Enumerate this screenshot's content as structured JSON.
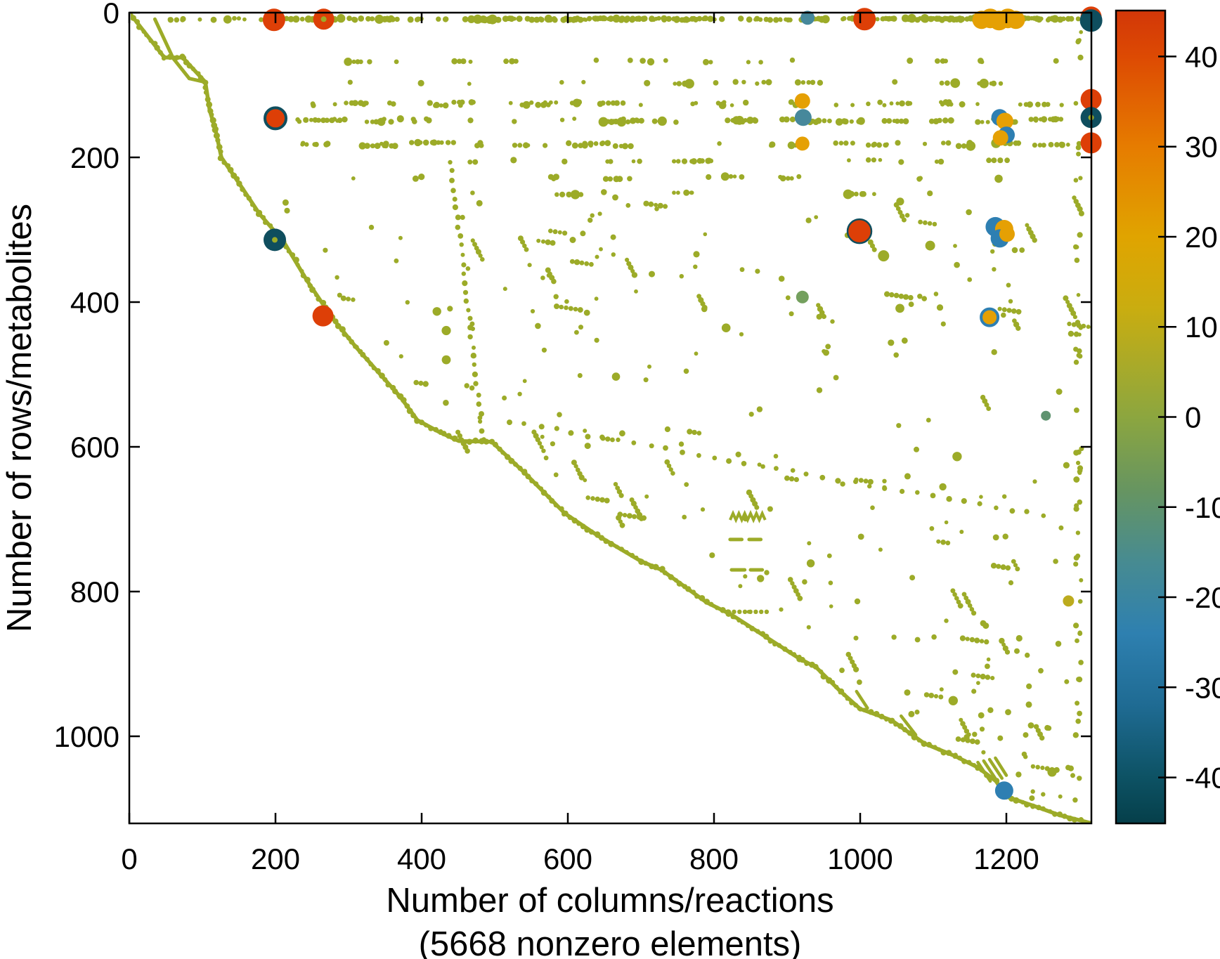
{
  "figure": {
    "kind": "matrix sparsity (spy) plot of a stoichiometric matrix with colorbar"
  },
  "chart_data": {
    "type": "scatter",
    "variant": "matrix-spy",
    "title": "",
    "xlabel": "Number of columns/reactions",
    "xlabel_note": "(5668 nonzero elements)",
    "ylabel": "Number of rows/metabolites",
    "nonzero_elements": 5668,
    "xlim": [
      0,
      1316
    ],
    "ylim": [
      0,
      1120
    ],
    "y_axis_reversed": true,
    "grid": false,
    "x_ticks": [
      0,
      200,
      400,
      600,
      800,
      1000,
      1200
    ],
    "y_ticks": [
      0,
      200,
      400,
      600,
      800,
      1000
    ],
    "base_point_color": "#9cab28",
    "palette": {
      "red": "#dd3f07",
      "orange": "#e5a004",
      "gold": "#dfa400",
      "teal": "#46889b",
      "blue": "#2e7fb2",
      "darkteal": "#0f4e5e",
      "sage": "#74a05e",
      "sageteal": "#5f9370",
      "olive": "#9cab28",
      "goldolive": "#bcab1e"
    },
    "colorbar": {
      "min": -45,
      "max": 45,
      "ticks": [
        40,
        30,
        20,
        10,
        0,
        -10,
        -20,
        -30,
        -40
      ],
      "legend_position": "right",
      "stops": [
        {
          "v": 45.1,
          "c": "#d23708"
        },
        {
          "v": 40,
          "c": "#dd4a03"
        },
        {
          "v": 30,
          "c": "#e67c00"
        },
        {
          "v": 20,
          "c": "#e0a400"
        },
        {
          "v": 12,
          "c": "#c9ad10"
        },
        {
          "v": 4,
          "c": "#a0a930"
        },
        {
          "v": 0,
          "c": "#8ca63f"
        },
        {
          "v": -8,
          "c": "#679560"
        },
        {
          "v": -16,
          "c": "#478b91"
        },
        {
          "v": -24,
          "c": "#2e80b0"
        },
        {
          "v": -32,
          "c": "#1f6b93"
        },
        {
          "v": -40,
          "c": "#0d5264"
        },
        {
          "v": -45.1,
          "c": "#053f4a"
        }
      ]
    },
    "envelope": [
      [
        0,
        0
      ],
      [
        48,
        62
      ],
      [
        73,
        62
      ],
      [
        104,
        96
      ],
      [
        110,
        135
      ],
      [
        118,
        162
      ],
      [
        126,
        200
      ],
      [
        151,
        237
      ],
      [
        178,
        278
      ],
      [
        211,
        316
      ],
      [
        243,
        370
      ],
      [
        277,
        421
      ],
      [
        310,
        462
      ],
      [
        340,
        496
      ],
      [
        370,
        530
      ],
      [
        394,
        563
      ],
      [
        425,
        580
      ],
      [
        451,
        592
      ],
      [
        496,
        593
      ],
      [
        540,
        635
      ],
      [
        596,
        692
      ],
      [
        640,
        722
      ],
      [
        700,
        758
      ],
      [
        728,
        770
      ],
      [
        790,
        815
      ],
      [
        820,
        830
      ],
      [
        827,
        834
      ],
      [
        916,
        892
      ],
      [
        940,
        905
      ],
      [
        973,
        938
      ],
      [
        1000,
        962
      ],
      [
        1043,
        978
      ],
      [
        1088,
        1010
      ],
      [
        1129,
        1027
      ],
      [
        1161,
        1043
      ],
      [
        1186,
        1062
      ],
      [
        1199,
        1083
      ],
      [
        1237,
        1096
      ],
      [
        1273,
        1109
      ],
      [
        1316,
        1120
      ]
    ],
    "inner_lines": [
      [
        [
          35,
          9
        ],
        [
          60,
          63
        ]
      ],
      [
        [
          60,
          63
        ],
        [
          82,
          91
        ]
      ],
      [
        [
          82,
          91
        ],
        [
          104,
          96
        ]
      ]
    ],
    "extra_dashes": [
      [
        [
          995,
          938
        ],
        [
          1010,
          961
        ]
      ],
      [
        [
          1056,
          972
        ],
        [
          1076,
          998
        ]
      ],
      [
        [
          1161,
          1036
        ],
        [
          1178,
          1062
        ]
      ],
      [
        [
          1169,
          1034
        ],
        [
          1186,
          1060
        ]
      ],
      [
        [
          1177,
          1032
        ],
        [
          1194,
          1058
        ]
      ],
      [
        [
          1185,
          1030
        ],
        [
          1200,
          1054
        ]
      ]
    ],
    "zigzag": {
      "x0": 822,
      "y": 701,
      "peak_y": 692,
      "teeth": 6,
      "pitch": 8
    },
    "dash_pairs": [
      {
        "y": 728,
        "segs": [
          [
            822,
            838
          ],
          [
            848,
            864
          ]
        ]
      },
      {
        "y": 770,
        "segs": [
          [
            824,
            842
          ],
          [
            850,
            866
          ]
        ]
      }
    ],
    "dotted_row": {
      "y": 828,
      "x0": 820,
      "x1": 872,
      "n": 8
    },
    "dotted_diagonals": [
      {
        "from": [
          439,
          206
        ],
        "to": [
          485,
          591
        ],
        "n": 30
      },
      {
        "from": [
          520,
          565
        ],
        "to": [
          1250,
          695
        ],
        "n": 34
      }
    ],
    "rows": [
      {
        "y": 9,
        "x0": 440,
        "x1": 1300,
        "n": 250,
        "jitter": 2.5,
        "run_p": 0.5
      },
      {
        "y": 9,
        "x0": 55,
        "x1": 440,
        "n": 60,
        "jitter": 2.5,
        "run_p": 0.35
      },
      {
        "y": 67,
        "x0": 200,
        "x1": 1300,
        "n": 30,
        "jitter": 3,
        "run_p": 0.3
      },
      {
        "y": 97,
        "x0": 250,
        "x1": 1300,
        "n": 32,
        "jitter": 3,
        "run_p": 0.3
      },
      {
        "y": 126,
        "x0": 250,
        "x1": 1308,
        "n": 82,
        "jitter": 5,
        "run_p": 0.35
      },
      {
        "y": 149,
        "x0": 215,
        "x1": 1308,
        "n": 120,
        "jitter": 5,
        "run_p": 0.4
      },
      {
        "y": 182,
        "x0": 235,
        "x1": 1308,
        "n": 92,
        "jitter": 5,
        "run_p": 0.4
      },
      {
        "y": 205,
        "x0": 460,
        "x1": 1210,
        "n": 26,
        "jitter": 3,
        "run_p": 0.25
      },
      {
        "y": 228,
        "x0": 290,
        "x1": 1240,
        "n": 22,
        "jitter": 4,
        "run_p": 0.25
      },
      {
        "y": 250,
        "x0": 410,
        "x1": 1170,
        "n": 18,
        "jitter": 4,
        "run_p": 0.2
      }
    ],
    "regions": [
      {
        "y0": 255,
        "y1": 450,
        "n": 185,
        "dash_p": 0.2
      },
      {
        "y0": 450,
        "y1": 700,
        "n": 135,
        "dash_p": 0.2
      },
      {
        "y0": 700,
        "y1": 950,
        "n": 100,
        "dash_p": 0.22
      },
      {
        "y0": 950,
        "y1": 1112,
        "n": 48,
        "dash_p": 0.18
      }
    ],
    "right_strip": {
      "x0": 1294,
      "x1": 1303,
      "y0": 20,
      "y1": 1100,
      "n": 55
    },
    "highlight_points": [
      {
        "x": 198,
        "y": 10,
        "r": 16,
        "color": "red",
        "value": 44
      },
      {
        "x": 266,
        "y": 9,
        "r": 15,
        "color": "red",
        "value": 44,
        "core": "olive"
      },
      {
        "x": 928,
        "y": 7,
        "r": 10,
        "color": "teal",
        "value": -20
      },
      {
        "x": 1006,
        "y": 9,
        "r": 16,
        "color": "red",
        "value": 44
      },
      {
        "x": 1166,
        "y": 10,
        "r": 13,
        "color": "orange",
        "value": 22
      },
      {
        "x": 1178,
        "y": 8,
        "r": 14,
        "color": "orange",
        "value": 22
      },
      {
        "x": 1190,
        "y": 11,
        "r": 14,
        "color": "orange",
        "value": 22
      },
      {
        "x": 1202,
        "y": 8,
        "r": 14,
        "color": "orange",
        "value": 22
      },
      {
        "x": 1213,
        "y": 10,
        "r": 13,
        "color": "orange",
        "value": 22
      },
      {
        "x": 1316,
        "y": 6,
        "r": 15,
        "color": "red",
        "value": 44
      },
      {
        "x": 1316,
        "y": 11,
        "r": 16,
        "color": "darkteal",
        "value": -43
      },
      {
        "x": 200,
        "y": 146,
        "r": 15,
        "color": "red",
        "value": 44,
        "ring": "darkteal"
      },
      {
        "x": 921,
        "y": 122,
        "r": 11,
        "color": "orange",
        "value": 20
      },
      {
        "x": 922,
        "y": 145,
        "r": 12,
        "color": "teal",
        "value": -21
      },
      {
        "x": 921,
        "y": 181,
        "r": 10,
        "color": "orange",
        "value": 20
      },
      {
        "x": 1316,
        "y": 120,
        "r": 15,
        "color": "red",
        "value": 44
      },
      {
        "x": 1316,
        "y": 145,
        "r": 15,
        "color": "darkteal",
        "value": -43,
        "core": "olive"
      },
      {
        "x": 1316,
        "y": 180,
        "r": 15,
        "color": "red",
        "value": 44
      },
      {
        "x": 1191,
        "y": 145,
        "r": 12,
        "color": "blue",
        "value": -27
      },
      {
        "x": 1198,
        "y": 150,
        "r": 12,
        "color": "orange",
        "value": 22
      },
      {
        "x": 1200,
        "y": 169,
        "r": 12,
        "color": "blue",
        "value": -27
      },
      {
        "x": 1192,
        "y": 173,
        "r": 11,
        "color": "orange",
        "value": 22
      },
      {
        "x": 199,
        "y": 314,
        "r": 16,
        "color": "darkteal",
        "value": -43,
        "core": "olive"
      },
      {
        "x": 265,
        "y": 419,
        "r": 15,
        "color": "red",
        "value": 44
      },
      {
        "x": 999,
        "y": 302,
        "r": 17,
        "color": "red",
        "value": 44,
        "ring": "darkteal",
        "ring_w": 2.5
      },
      {
        "x": 1185,
        "y": 296,
        "r": 14,
        "color": "blue",
        "value": -27
      },
      {
        "x": 1197,
        "y": 299,
        "r": 13,
        "color": "orange",
        "value": 22
      },
      {
        "x": 1191,
        "y": 312,
        "r": 13,
        "color": "blue",
        "value": -27
      },
      {
        "x": 1201,
        "y": 306,
        "r": 11,
        "color": "orange",
        "value": 22
      },
      {
        "x": 921,
        "y": 393,
        "r": 9,
        "color": "sage",
        "value": -9
      },
      {
        "x": 1032,
        "y": 336,
        "r": 8,
        "color": "olive",
        "value": 3
      },
      {
        "x": 1177,
        "y": 421,
        "r": 12,
        "color": "orange",
        "value": 22,
        "ring": "blue"
      },
      {
        "x": 1254,
        "y": 557,
        "r": 7,
        "color": "sageteal",
        "value": -12
      },
      {
        "x": 1285,
        "y": 813,
        "r": 8,
        "color": "goldolive",
        "value": 8
      },
      {
        "x": 1197,
        "y": 1075,
        "r": 13,
        "color": "blue",
        "value": -27
      }
    ]
  }
}
